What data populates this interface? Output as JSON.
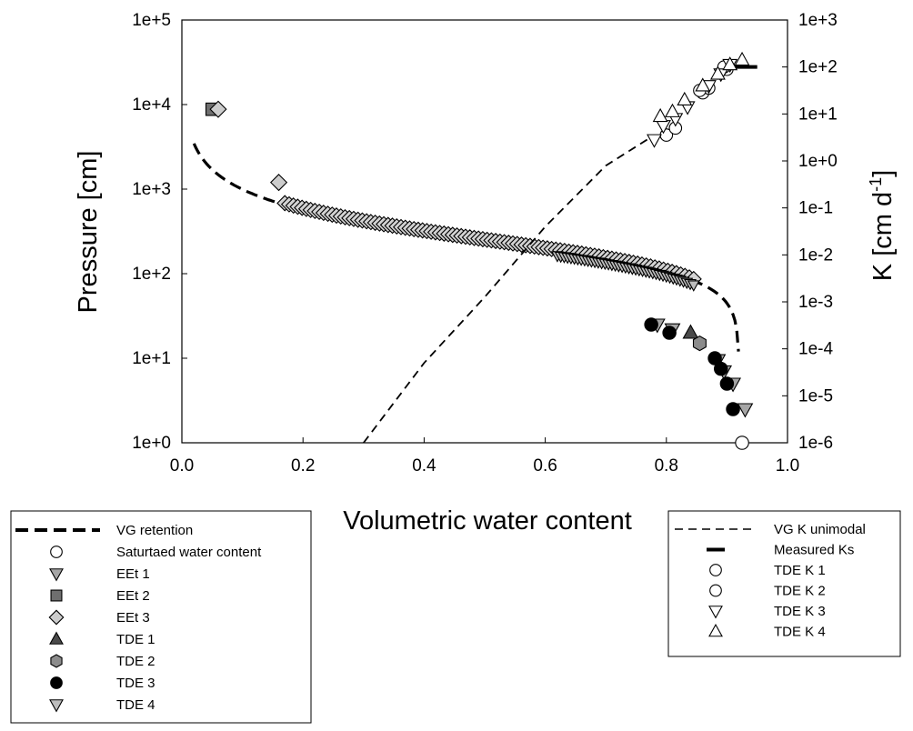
{
  "chart_data": {
    "type": "scatter",
    "title": "",
    "xlabel": "Volumetric water content",
    "ylabel": "Pressure [cm]",
    "y2label_parts": [
      "K [cm d",
      "-1",
      "]"
    ],
    "xlim": [
      0.0,
      1.0
    ],
    "ylim_log10": [
      0,
      5
    ],
    "y2lim_log10": [
      -6,
      3
    ],
    "x_ticks": [
      "0.0",
      "0.2",
      "0.4",
      "0.6",
      "0.8",
      "1.0"
    ],
    "y_ticks": [
      "1e+0",
      "1e+1",
      "1e+2",
      "1e+3",
      "1e+4",
      "1e+5"
    ],
    "y2_ticks": [
      "1e-6",
      "1e-5",
      "1e-4",
      "1e-3",
      "1e-2",
      "1e-1",
      "1e+0",
      "1e+1",
      "1e+2",
      "1e+3"
    ],
    "retention_curve": {
      "name": "VG retention",
      "theta_r": 0.0,
      "theta_s": 0.92,
      "alpha": 0.0055,
      "n": 2.3,
      "theta_min": 0.02,
      "theta_max": 0.919
    },
    "conductivity_curve": {
      "name": "VG K  unimodal",
      "x": [
        0.3,
        0.4,
        0.5,
        0.6,
        0.7,
        0.78
      ],
      "log10_K": [
        -6.0,
        -4.3,
        -2.9,
        -1.4,
        -0.1,
        0.55
      ]
    },
    "series_left": [
      {
        "name": "Saturtaed water content",
        "marker": "circle",
        "fill": "#ffffff",
        "points": [
          [
            0.925,
            1.0
          ]
        ]
      },
      {
        "name": "EEt 1",
        "marker": "triangle-down",
        "fill": "#a6a6a6",
        "points": [
          [
            0.93,
            2.5
          ],
          [
            0.91,
            5
          ],
          [
            0.895,
            7
          ],
          [
            0.885,
            9.5
          ],
          [
            0.81,
            22
          ],
          [
            0.785,
            25
          ]
        ]
      },
      {
        "name": "EEt  2",
        "marker": "square",
        "fill": "#6f6f6f",
        "points": [
          [
            0.05,
            8800
          ]
        ]
      },
      {
        "name": "EEt  3",
        "marker": "diamond",
        "fill": "#cccccc",
        "points": [
          [
            0.06,
            8800
          ],
          [
            0.16,
            1200
          ]
        ]
      },
      {
        "name": "TDE 1",
        "marker": "triangle-up",
        "fill": "#4a4a4a",
        "points": [
          [
            0.84,
            20
          ]
        ]
      },
      {
        "name": "TDE 2",
        "marker": "hexagon",
        "fill": "#8c8c8c",
        "points": [
          [
            0.855,
            15
          ]
        ]
      },
      {
        "name": "TDE 3",
        "marker": "circle",
        "fill": "#000000",
        "points": [
          [
            0.775,
            25
          ],
          [
            0.805,
            20
          ],
          [
            0.88,
            10
          ],
          [
            0.89,
            7.5
          ],
          [
            0.9,
            5
          ],
          [
            0.91,
            2.5
          ]
        ]
      },
      {
        "name": "TDE 4",
        "marker": "triangle-down",
        "fill": "#bdbdbd",
        "points": []
      }
    ],
    "series_right": [
      {
        "name": "Measured Ks",
        "marker": "dash",
        "log10_K": 2.0,
        "x_range": [
          0.905,
          0.95
        ]
      },
      {
        "name": "TDE K 1",
        "marker": "circle",
        "points": [
          [
            0.8,
            0.55
          ],
          [
            0.815,
            0.7
          ],
          [
            0.86,
            1.45
          ],
          [
            0.87,
            1.55
          ],
          [
            0.9,
            1.95
          ]
        ]
      },
      {
        "name": "TDE K 2",
        "marker": "circle",
        "points": [
          [
            0.855,
            1.5
          ],
          [
            0.895,
            2.0
          ]
        ]
      },
      {
        "name": "TDE K 3",
        "marker": "triangle-down",
        "points": [
          [
            0.78,
            0.45
          ],
          [
            0.795,
            0.75
          ],
          [
            0.815,
            0.9
          ],
          [
            0.835,
            1.15
          ],
          [
            0.87,
            1.6
          ],
          [
            0.89,
            1.85
          ],
          [
            0.905,
            2.05
          ]
        ]
      },
      {
        "name": "TDE K 4",
        "marker": "triangle-up",
        "points": [
          [
            0.79,
            0.95
          ],
          [
            0.81,
            1.05
          ],
          [
            0.83,
            1.3
          ],
          [
            0.86,
            1.6
          ],
          [
            0.885,
            1.85
          ],
          [
            0.905,
            2.05
          ],
          [
            0.925,
            2.15
          ]
        ]
      }
    ],
    "legend_left": [
      "VG retention",
      "Saturtaed water content",
      "EEt 1",
      "EEt  2",
      "EEt  3",
      "TDE 1",
      "TDE 2",
      "TDE 3",
      "TDE 4"
    ],
    "legend_right": [
      "VG K  unimodal",
      "Measured Ks",
      "TDE K 1",
      "TDE K 2",
      "TDE K 3",
      "TDE K 4"
    ]
  }
}
